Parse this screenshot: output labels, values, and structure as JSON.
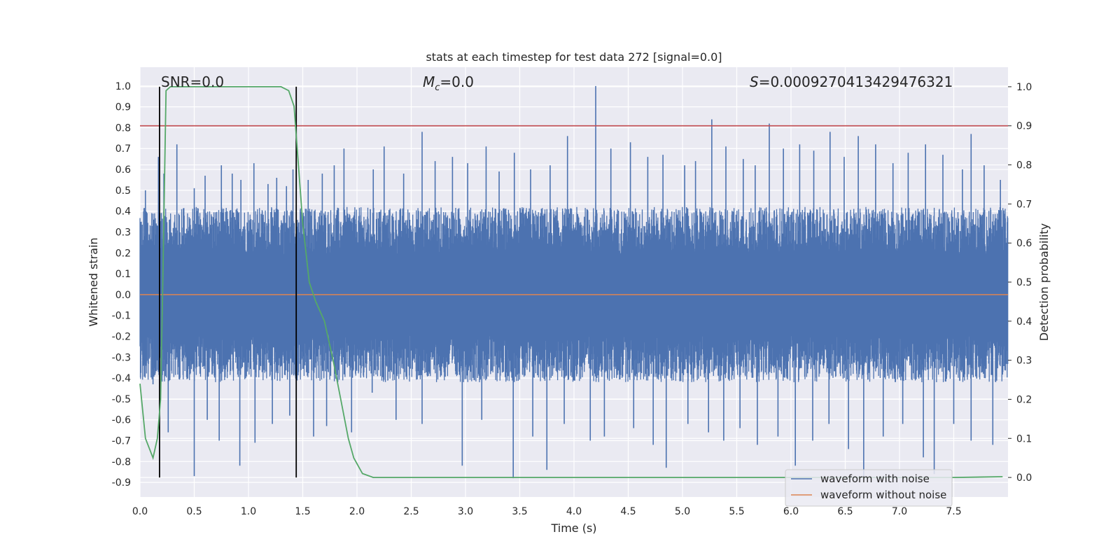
{
  "chart_data": {
    "type": "line",
    "title": "stats at each timestep for test data 272 [signal=0.0]",
    "xlabel": "Time (s)",
    "ylabel": "Whitened strain",
    "y2label": "Detection probability",
    "xlim": [
      0.0,
      8.0
    ],
    "ylim": [
      -0.97,
      1.09
    ],
    "y2lim": [
      -0.05,
      1.05
    ],
    "x_ticks": [
      "0.0",
      "0.5",
      "1.0",
      "1.5",
      "2.0",
      "2.5",
      "3.0",
      "3.5",
      "4.0",
      "4.5",
      "5.0",
      "5.5",
      "6.0",
      "6.5",
      "7.0",
      "7.5"
    ],
    "y_ticks": [
      "1.0",
      "0.9",
      "0.8",
      "0.7",
      "0.6",
      "0.5",
      "0.4",
      "0.3",
      "0.2",
      "0.1",
      "0.0",
      "-0.1",
      "-0.2",
      "-0.3",
      "-0.4",
      "-0.5",
      "-0.6",
      "-0.7",
      "-0.8",
      "-0.9"
    ],
    "y2_ticks": [
      "1.0",
      "0.9",
      "0.8",
      "0.7",
      "0.6",
      "0.5",
      "0.4",
      "0.3",
      "0.2",
      "0.1",
      "0.0"
    ],
    "grid": true,
    "legend_position": "lower-right",
    "annotations": {
      "snr": "SNR=0.0",
      "mc_symbol": "M",
      "mc_sub": "c",
      "mc_value": "=0.0",
      "s_symbol": "S",
      "s_value": "=0.0009270413429476321"
    },
    "threshold_y2": 0.9,
    "vertical_markers_x": [
      0.18,
      1.44
    ],
    "series": [
      {
        "name": "waveform with noise",
        "color": "#4c72b0",
        "axis": "left",
        "envelope_band": [
          -0.42,
          0.42
        ],
        "peaks_x": [
          0.05,
          0.17,
          0.22,
          0.34,
          0.5,
          0.6,
          0.75,
          0.85,
          0.93,
          1.05,
          1.18,
          1.26,
          1.35,
          1.41,
          1.55,
          1.68,
          1.79,
          1.88,
          2.15,
          2.25,
          2.43,
          2.6,
          2.72,
          2.88,
          3.02,
          3.19,
          3.31,
          3.45,
          3.6,
          3.78,
          3.94,
          4.2,
          4.34,
          4.52,
          4.68,
          4.82,
          5.02,
          5.12,
          5.27,
          5.4,
          5.56,
          5.67,
          5.8,
          5.93,
          6.08,
          6.21,
          6.36,
          6.49,
          6.62,
          6.78,
          6.94,
          7.08,
          7.24,
          7.4,
          7.58,
          7.66,
          7.78,
          7.93
        ],
        "peaks_y": [
          0.5,
          0.66,
          0.58,
          0.72,
          0.51,
          0.57,
          0.62,
          0.58,
          0.55,
          0.63,
          0.53,
          0.56,
          0.52,
          0.6,
          0.55,
          0.58,
          0.62,
          0.7,
          0.6,
          0.71,
          0.58,
          0.78,
          0.64,
          0.66,
          0.63,
          0.71,
          0.59,
          0.68,
          0.6,
          0.62,
          0.76,
          1.0,
          0.7,
          0.73,
          0.66,
          0.67,
          0.62,
          0.64,
          0.84,
          0.71,
          0.65,
          0.62,
          0.82,
          0.7,
          0.72,
          0.69,
          0.78,
          0.66,
          0.76,
          0.72,
          0.63,
          0.68,
          0.72,
          0.67,
          0.6,
          0.77,
          0.62,
          0.55
        ],
        "troughs_x": [
          0.12,
          0.26,
          0.5,
          0.62,
          0.73,
          0.92,
          1.06,
          1.22,
          1.38,
          1.6,
          1.72,
          1.95,
          2.14,
          2.36,
          2.6,
          2.97,
          3.15,
          3.44,
          3.62,
          3.75,
          3.91,
          4.15,
          4.28,
          4.55,
          4.73,
          4.85,
          5.05,
          5.24,
          5.38,
          5.53,
          5.69,
          5.88,
          6.04,
          6.2,
          6.35,
          6.53,
          6.67,
          6.85,
          7.03,
          7.22,
          7.32,
          7.5,
          7.66,
          7.86
        ],
        "troughs_y": [
          -0.43,
          -0.66,
          -0.87,
          -0.6,
          -0.7,
          -0.82,
          -0.71,
          -0.62,
          -0.58,
          -0.68,
          -0.63,
          -0.66,
          -0.47,
          -0.6,
          -0.62,
          -0.82,
          -0.6,
          -0.88,
          -0.68,
          -0.84,
          -0.62,
          -0.7,
          -0.68,
          -0.64,
          -0.72,
          -0.83,
          -0.62,
          -0.66,
          -0.7,
          -0.64,
          -0.72,
          -0.68,
          -0.82,
          -0.7,
          -0.62,
          -0.74,
          -0.87,
          -0.68,
          -0.62,
          -0.78,
          -0.86,
          -0.62,
          -0.7,
          -0.72
        ]
      },
      {
        "name": "waveform without noise",
        "color": "#dd8452",
        "axis": "left",
        "x": [
          0.0,
          8.0
        ],
        "y": [
          0.0,
          0.0
        ]
      },
      {
        "name": "",
        "color": "#55a868",
        "axis": "right",
        "x": [
          0.0,
          0.05,
          0.12,
          0.16,
          0.19,
          0.21,
          0.24,
          0.28,
          0.35,
          0.5,
          0.8,
          1.1,
          1.3,
          1.37,
          1.42,
          1.46,
          1.5,
          1.56,
          1.62,
          1.7,
          1.78,
          1.85,
          1.92,
          1.97,
          2.05,
          2.15,
          2.5,
          3.0,
          4.0,
          5.0,
          6.0,
          7.0,
          7.5,
          7.95
        ],
        "y": [
          0.24,
          0.1,
          0.05,
          0.1,
          0.2,
          0.5,
          0.99,
          1.0,
          1.0,
          1.0,
          1.0,
          1.0,
          1.0,
          0.99,
          0.95,
          0.8,
          0.65,
          0.5,
          0.45,
          0.4,
          0.3,
          0.2,
          0.1,
          0.05,
          0.01,
          0.0,
          0.0,
          0.0,
          0.0,
          0.0,
          0.0,
          0.0,
          0.0,
          0.002
        ]
      }
    ]
  }
}
